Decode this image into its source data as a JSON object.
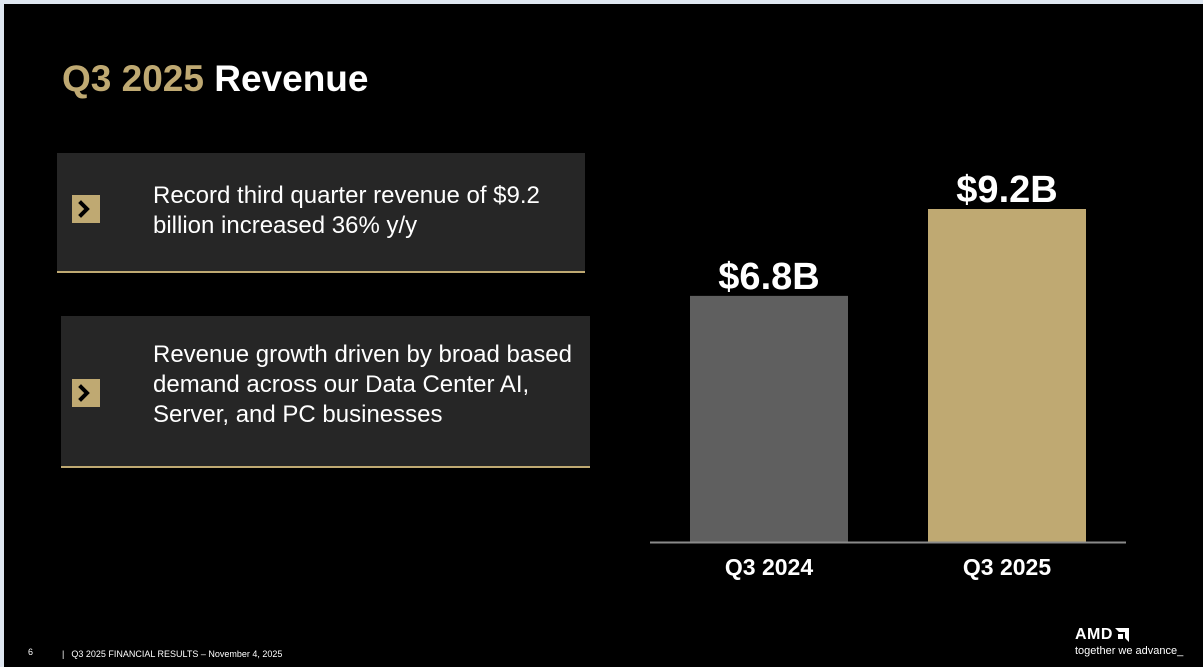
{
  "slide": {
    "title_accent": "Q3 2025",
    "title_main": "Revenue"
  },
  "highlights": [
    {
      "icon": "chevron-right-icon",
      "text": "Record third quarter revenue of $9.2 billion increased 36% y/y"
    },
    {
      "icon": "chevron-right-icon",
      "text": "Revenue growth driven by broad based demand across our Data Center AI, Server, and PC businesses"
    }
  ],
  "chart_data": {
    "type": "bar",
    "title": "",
    "xlabel": "",
    "ylabel": "",
    "categories": [
      "Q3 2024",
      "Q3 2025"
    ],
    "values": [
      6.8,
      9.2
    ],
    "units": "$B",
    "data_labels": [
      "$6.8B",
      "$9.2B"
    ],
    "bar_colors": [
      "#5f5f5f",
      "#bfa972"
    ],
    "ylim": [
      0,
      9.2
    ],
    "grid": false,
    "legend": "none"
  },
  "footer": {
    "page_number": "6",
    "separator": "|",
    "text": "Q3 2025 FINANCIAL RESULTS – November 4, 2025"
  },
  "brand": {
    "logo_text": "AMD",
    "tagline": "together we advance_"
  },
  "colors": {
    "accent": "#bfa972",
    "background": "#000000",
    "card": "#262626",
    "bar_prior": "#5f5f5f"
  }
}
